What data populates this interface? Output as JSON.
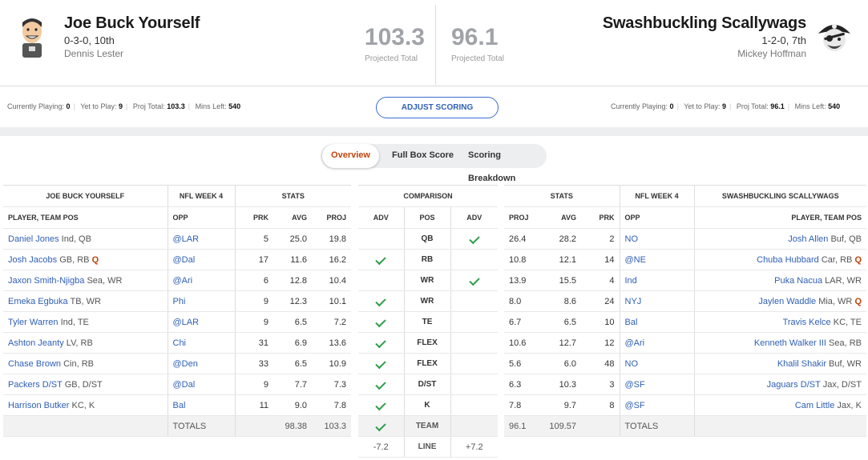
{
  "home": {
    "name": "Joe Buck Yourself",
    "record": "0-3-0, 10th",
    "owner": "Dennis Lester",
    "projected_total": "103.3",
    "projected_label": "Projected Total",
    "status": {
      "playing_label": "Currently Playing:",
      "playing": "0",
      "yet_label": "Yet to Play:",
      "yet": "9",
      "proj_label": "Proj Total:",
      "proj": "103.3",
      "mins_label": "Mins Left:",
      "mins": "540"
    }
  },
  "away": {
    "name": "Swashbuckling Scallywags",
    "record": "1-2-0, 7th",
    "owner": "Mickey Hoffman",
    "projected_total": "96.1",
    "projected_label": "Projected Total",
    "status": {
      "playing_label": "Currently Playing:",
      "playing": "0",
      "yet_label": "Yet to Play:",
      "yet": "9",
      "proj_label": "Proj Total:",
      "proj": "96.1",
      "mins_label": "Mins Left:",
      "mins": "540"
    }
  },
  "adjust_scoring": "ADJUST SCORING",
  "tabs": [
    "Overview",
    "Full Box Score",
    "Scoring Breakdown"
  ],
  "headers": {
    "home_team": "JOE BUCK YOURSELF",
    "week": "NFL WEEK 4",
    "stats": "STATS",
    "comparison": "COMPARISON",
    "away_team": "SWASHBUCKLING SCALLYWAGS",
    "player": "PLAYER, TEAM POS",
    "opp": "OPP",
    "prk": "PRK",
    "avg": "AVG",
    "proj": "PROJ",
    "adv": "ADV",
    "pos": "POS"
  },
  "home_rows": [
    {
      "player": "Daniel Jones",
      "team_pos": "Ind, QB",
      "inj": "",
      "opp": "@LAR",
      "prk": "5",
      "avg": "25.0",
      "proj": "19.8"
    },
    {
      "player": "Josh Jacobs",
      "team_pos": "GB, RB",
      "inj": "Q",
      "opp": "@Dal",
      "prk": "17",
      "avg": "11.6",
      "proj": "16.2"
    },
    {
      "player": "Jaxon Smith-Njigba",
      "team_pos": "Sea, WR",
      "inj": "",
      "opp": "@Ari",
      "prk": "6",
      "avg": "12.8",
      "proj": "10.4"
    },
    {
      "player": "Emeka Egbuka",
      "team_pos": "TB, WR",
      "inj": "",
      "opp": "Phi",
      "prk": "9",
      "avg": "12.3",
      "proj": "10.1"
    },
    {
      "player": "Tyler Warren",
      "team_pos": "Ind, TE",
      "inj": "",
      "opp": "@LAR",
      "prk": "9",
      "avg": "6.5",
      "proj": "7.2"
    },
    {
      "player": "Ashton Jeanty",
      "team_pos": "LV, RB",
      "inj": "",
      "opp": "Chi",
      "prk": "31",
      "avg": "6.9",
      "proj": "13.6"
    },
    {
      "player": "Chase Brown",
      "team_pos": "Cin, RB",
      "inj": "",
      "opp": "@Den",
      "prk": "33",
      "avg": "6.5",
      "proj": "10.9"
    },
    {
      "player": "Packers D/ST",
      "team_pos": "GB, D/ST",
      "inj": "",
      "opp": "@Dal",
      "prk": "9",
      "avg": "7.7",
      "proj": "7.3"
    },
    {
      "player": "Harrison Butker",
      "team_pos": "KC, K",
      "inj": "",
      "opp": "Bal",
      "prk": "11",
      "avg": "9.0",
      "proj": "7.8"
    }
  ],
  "home_totals": {
    "label": "TOTALS",
    "avg": "98.38",
    "proj": "103.3"
  },
  "comparison_rows": [
    {
      "pos": "QB",
      "left": false,
      "right": true
    },
    {
      "pos": "RB",
      "left": true,
      "right": false
    },
    {
      "pos": "WR",
      "left": false,
      "right": true
    },
    {
      "pos": "WR",
      "left": true,
      "right": false
    },
    {
      "pos": "TE",
      "left": true,
      "right": false
    },
    {
      "pos": "FLEX",
      "left": true,
      "right": false
    },
    {
      "pos": "FLEX",
      "left": true,
      "right": false
    },
    {
      "pos": "D/ST",
      "left": true,
      "right": false
    },
    {
      "pos": "K",
      "left": true,
      "right": false
    },
    {
      "pos": "TEAM",
      "left": true,
      "right": false
    }
  ],
  "line": {
    "left": "-7.2",
    "label": "LINE",
    "right": "+7.2"
  },
  "away_rows": [
    {
      "player": "Josh Allen",
      "team_pos": "Buf, QB",
      "inj": "",
      "opp": "NO",
      "prk": "2",
      "avg": "28.2",
      "proj": "26.4"
    },
    {
      "player": "Chuba Hubbard",
      "team_pos": "Car, RB",
      "inj": "Q",
      "opp": "@NE",
      "prk": "14",
      "avg": "12.1",
      "proj": "10.8"
    },
    {
      "player": "Puka Nacua",
      "team_pos": "LAR, WR",
      "inj": "",
      "opp": "Ind",
      "prk": "4",
      "avg": "15.5",
      "proj": "13.9"
    },
    {
      "player": "Jaylen Waddle",
      "team_pos": "Mia, WR",
      "inj": "Q",
      "opp": "NYJ",
      "prk": "24",
      "avg": "8.6",
      "proj": "8.0"
    },
    {
      "player": "Travis Kelce",
      "team_pos": "KC, TE",
      "inj": "",
      "opp": "Bal",
      "prk": "10",
      "avg": "6.5",
      "proj": "6.7"
    },
    {
      "player": "Kenneth Walker III",
      "team_pos": "Sea, RB",
      "inj": "",
      "opp": "@Ari",
      "prk": "12",
      "avg": "12.7",
      "proj": "10.6"
    },
    {
      "player": "Khalil Shakir",
      "team_pos": "Buf, WR",
      "inj": "",
      "opp": "NO",
      "prk": "48",
      "avg": "6.0",
      "proj": "5.6"
    },
    {
      "player": "Jaguars D/ST",
      "team_pos": "Jax, D/ST",
      "inj": "",
      "opp": "@SF",
      "prk": "3",
      "avg": "10.3",
      "proj": "6.3"
    },
    {
      "player": "Cam Little",
      "team_pos": "Jax, K",
      "inj": "",
      "opp": "@SF",
      "prk": "8",
      "avg": "9.7",
      "proj": "7.8"
    }
  ],
  "away_totals": {
    "label": "TOTALS",
    "avg": "109.57",
    "proj": "96.1"
  },
  "colors": {
    "accent_orange": "#c1440e",
    "link_blue": "#2f5fb5",
    "check_green": "#2e9e4a"
  }
}
